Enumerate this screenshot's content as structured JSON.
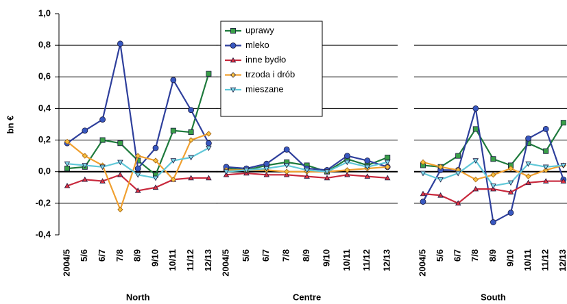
{
  "chart_data": {
    "type": "line",
    "ylabel": "bn €",
    "ylim": [
      -0.4,
      1.0
    ],
    "yticks": [
      {
        "value": -0.4,
        "label": "-0,4"
      },
      {
        "value": -0.2,
        "label": "-0,2"
      },
      {
        "value": 0,
        "label": "0,0"
      },
      {
        "value": 0.2,
        "label": "0,2"
      },
      {
        "value": 0.4,
        "label": "0,4"
      },
      {
        "value": 0.6,
        "label": "0,6"
      },
      {
        "value": 0.8,
        "label": "0,8"
      },
      {
        "value": 1.0,
        "label": "1,0"
      }
    ],
    "legend": [
      {
        "name": "uprawy",
        "color": "#1e7a3c",
        "fill": "#3aa048",
        "marker": "square"
      },
      {
        "name": "mleko",
        "color": "#2e3f9c",
        "fill": "#3858c0",
        "marker": "circle"
      },
      {
        "name": "inne bydło",
        "color": "#c8283c",
        "fill": "#e03040",
        "marker": "triangle"
      },
      {
        "name": "trzoda i drób",
        "color": "#f0a030",
        "fill": "#f8c040",
        "marker": "diamond"
      },
      {
        "name": "mieszane",
        "color": "#60c8d8",
        "fill": "#80d8e8",
        "marker": "triangle-down"
      }
    ],
    "panels": [
      {
        "title": "North",
        "categories": [
          "2004/5",
          "5/6",
          "6/7",
          "7/8",
          "8/9",
          "9/10",
          "10/11",
          "11/12",
          "12/13"
        ],
        "series": [
          {
            "values": [
              0.02,
              0.03,
              0.2,
              0.18,
              0.07,
              -0.02,
              0.26,
              0.25,
              0.62
            ]
          },
          {
            "values": [
              0.18,
              0.26,
              0.33,
              0.81,
              0.02,
              0.15,
              0.58,
              0.39,
              0.18
            ]
          },
          {
            "values": [
              -0.09,
              -0.05,
              -0.06,
              -0.02,
              -0.12,
              -0.1,
              -0.05,
              -0.04,
              -0.04
            ]
          },
          {
            "values": [
              0.19,
              0.1,
              0.04,
              -0.24,
              0.1,
              0.07,
              -0.05,
              0.2,
              0.24
            ]
          },
          {
            "values": [
              0.05,
              0.04,
              0.03,
              0.06,
              -0.02,
              -0.04,
              0.07,
              0.09,
              0.15
            ]
          }
        ]
      },
      {
        "title": "Centre",
        "categories": [
          "2004/5",
          "5/6",
          "6/7",
          "7/8",
          "8/9",
          "9/10",
          "10/11",
          "11/12",
          "12/13"
        ],
        "series": [
          {
            "values": [
              0.02,
              0.01,
              0.04,
              0.06,
              0.04,
              0.0,
              0.08,
              0.04,
              0.09
            ]
          },
          {
            "values": [
              0.03,
              0.02,
              0.05,
              0.14,
              0.02,
              0.01,
              0.1,
              0.07,
              0.03
            ]
          },
          {
            "values": [
              -0.02,
              -0.01,
              -0.02,
              -0.02,
              -0.03,
              -0.04,
              -0.02,
              -0.03,
              -0.04
            ]
          },
          {
            "values": [
              0.01,
              0.01,
              0.01,
              0.0,
              0.0,
              0.0,
              0.01,
              0.02,
              0.03
            ]
          },
          {
            "values": [
              0.0,
              0.01,
              0.02,
              0.04,
              0.01,
              0.0,
              0.06,
              0.03,
              0.06
            ]
          }
        ]
      },
      {
        "title": "South",
        "categories": [
          "2004/5",
          "5/6",
          "6/7",
          "7/8",
          "8/9",
          "9/10",
          "10/11",
          "11/12",
          "12/13"
        ],
        "series": [
          {
            "values": [
              0.04,
              0.03,
              0.1,
              0.27,
              0.08,
              0.04,
              0.18,
              0.13,
              0.31
            ]
          },
          {
            "values": [
              -0.19,
              0.01,
              0.01,
              0.4,
              -0.32,
              -0.26,
              0.21,
              0.27,
              -0.05
            ]
          },
          {
            "values": [
              -0.14,
              -0.15,
              -0.2,
              -0.11,
              -0.11,
              -0.13,
              -0.07,
              -0.06,
              -0.06
            ]
          },
          {
            "values": [
              0.06,
              0.03,
              0.01,
              -0.05,
              -0.02,
              0.02,
              -0.03,
              0.01,
              0.04
            ]
          },
          {
            "values": [
              -0.01,
              -0.05,
              -0.01,
              0.07,
              -0.09,
              -0.07,
              0.05,
              0.03,
              0.04
            ]
          }
        ]
      }
    ]
  }
}
